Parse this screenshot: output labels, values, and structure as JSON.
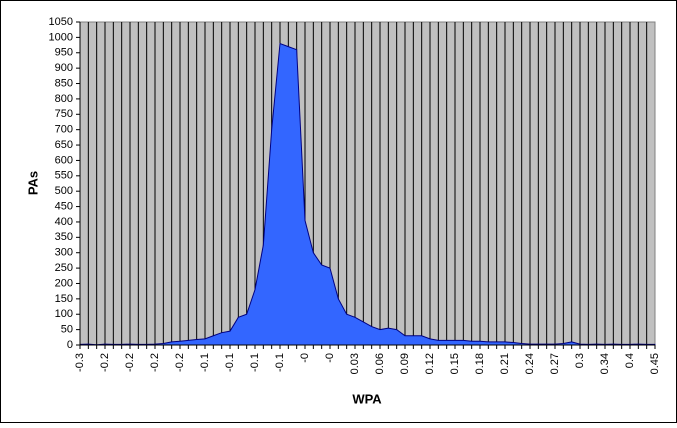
{
  "chart_data": {
    "type": "area",
    "y_label": "PAs",
    "x_label": "WPA",
    "categories": [
      "-0.3",
      null,
      null,
      "-0.2",
      null,
      null,
      "-0.2",
      null,
      null,
      "-0.2",
      null,
      null,
      "-0.2",
      null,
      null,
      "-0.1",
      null,
      null,
      "-0.1",
      null,
      null,
      "-0.1",
      null,
      null,
      "-0.1",
      null,
      null,
      "-0",
      null,
      null,
      "-0",
      null,
      null,
      "0.03",
      null,
      null,
      "0.06",
      null,
      null,
      "0.09",
      null,
      null,
      "0.12",
      null,
      null,
      "0.15",
      null,
      null,
      "0.18",
      null,
      null,
      "0.21",
      null,
      null,
      "0.24",
      null,
      null,
      "0.27",
      null,
      null,
      "0.3",
      null,
      null,
      "0.34",
      null,
      null,
      "0.4",
      null,
      null,
      "0.45"
    ],
    "values": [
      2,
      3,
      1,
      3,
      2,
      2,
      3,
      2,
      2,
      3,
      5,
      10,
      12,
      15,
      18,
      20,
      30,
      40,
      45,
      90,
      100,
      180,
      325,
      700,
      980,
      970,
      960,
      405,
      300,
      260,
      250,
      150,
      100,
      90,
      75,
      60,
      50,
      55,
      50,
      30,
      30,
      30,
      20,
      15,
      15,
      15,
      15,
      12,
      12,
      10,
      10,
      10,
      8,
      5,
      3,
      3,
      3,
      3,
      5,
      10,
      3,
      2,
      3,
      2,
      3,
      2,
      2,
      3,
      2,
      2
    ],
    "color": "#3366ff",
    "line_color": "#000080",
    "background": "#c0c0c0",
    "ylim": [
      0,
      1050
    ],
    "yticks": [
      0,
      50,
      100,
      150,
      200,
      250,
      300,
      350,
      400,
      450,
      500,
      550,
      600,
      650,
      700,
      750,
      800,
      850,
      900,
      950,
      1000,
      1050
    ],
    "grid": true
  }
}
